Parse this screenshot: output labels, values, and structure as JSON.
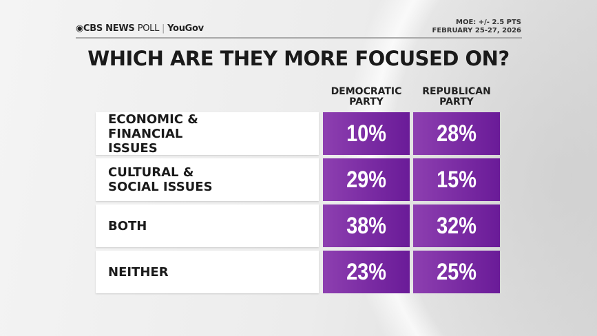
{
  "header": {
    "brand": "CBS NEWS",
    "poll": "POLL",
    "partner": "YouGov",
    "moe": "MOE: +/- 2.5 PTS",
    "dates": "FEBRUARY 25-27, 2026"
  },
  "title": "WHICH ARE THEY MORE FOCUSED ON?",
  "chart_data": {
    "type": "table",
    "title": "WHICH ARE THEY MORE FOCUSED ON?",
    "columns": [
      "DEMOCRATIC PARTY",
      "REPUBLICAN PARTY"
    ],
    "rows": [
      {
        "label": "ECONOMIC & FINANCIAL ISSUES",
        "values": [
          "10%",
          "28%"
        ]
      },
      {
        "label": "CULTURAL & SOCIAL ISSUES",
        "values": [
          "29%",
          "15%"
        ]
      },
      {
        "label": "BOTH",
        "values": [
          "38%",
          "32%"
        ]
      },
      {
        "label": "NEITHER",
        "values": [
          "23%",
          "25%"
        ]
      }
    ],
    "colors": {
      "cell": "#7b2ba3",
      "label_bg": "#ffffff"
    }
  }
}
